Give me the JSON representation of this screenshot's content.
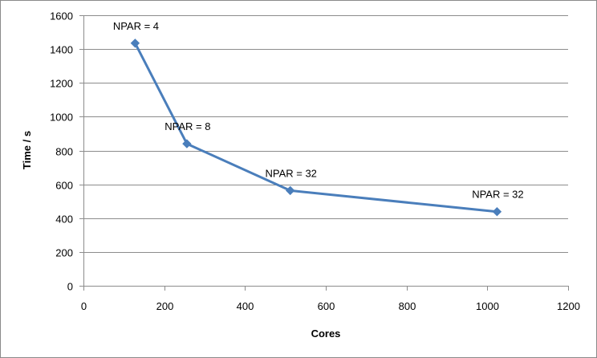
{
  "chart_data": {
    "type": "line",
    "title": "",
    "xlabel": "Cores",
    "ylabel": "Time / s",
    "xlim": [
      0,
      1200
    ],
    "ylim": [
      0,
      1600
    ],
    "xticks": [
      0,
      200,
      400,
      600,
      800,
      1000,
      1200
    ],
    "yticks": [
      0,
      200,
      400,
      600,
      800,
      1000,
      1200,
      1400,
      1600
    ],
    "grid": "horizontal",
    "legend": "none",
    "series": [
      {
        "color": "#4a7ebb",
        "marker": "diamond",
        "points": [
          {
            "x": 128,
            "y": 1435,
            "label": "NPAR = 4"
          },
          {
            "x": 256,
            "y": 840,
            "label": "NPAR = 8"
          },
          {
            "x": 512,
            "y": 563,
            "label": "NPAR = 32"
          },
          {
            "x": 1024,
            "y": 438,
            "label": "NPAR = 32"
          }
        ]
      }
    ]
  }
}
